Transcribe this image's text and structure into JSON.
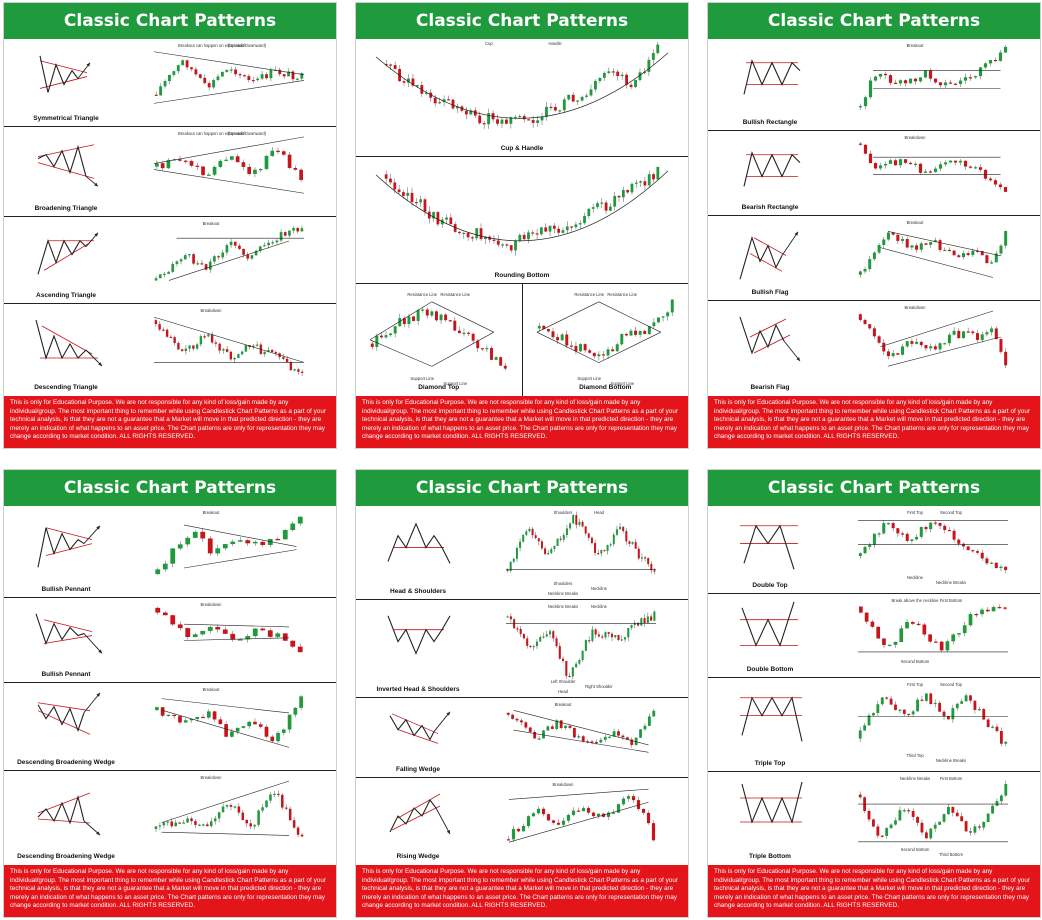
{
  "title": "Classic Chart Patterns",
  "disclaimer": "This is only for Educational Purpose. We are not responsible for any kind of loss/gain made by any individual/group. The most important thing to remember while using Candlestick Chart Patterns as a part of your technical analysis, is that they are not a guarantee that a Market will move in that predicted direction - they are merely an indication of what happens to an asset price. The Chart patterns are only for representation they may change according to market condition. ALL RIGHTS RESERVED.",
  "colors": {
    "header": "#1f9a3d",
    "disclaimer": "#e3151a",
    "bull": "#1f9a3d",
    "bear": "#c8141b"
  },
  "posters": [
    {
      "rows": [
        {
          "kind": "pair",
          "label": "Symmetrical Triangle",
          "shape": "sym",
          "candles": "sym",
          "notes": [
            "Breakout can happen on either side",
            "(Upward/Downward)"
          ]
        },
        {
          "kind": "pair",
          "label": "Broadening Triangle",
          "shape": "broad",
          "candles": "broad",
          "notes": [
            "Breakout can happen on either side",
            "(Upward/Downward)"
          ]
        },
        {
          "kind": "pair",
          "label": "Ascending Triangle",
          "shape": "asc",
          "candles": "asc",
          "notes": [
            "Breakout"
          ]
        },
        {
          "kind": "pair",
          "label": "Descending Triangle",
          "shape": "desc",
          "candles": "desc",
          "notes": [
            "Breakdown"
          ]
        }
      ]
    },
    {
      "rows": [
        {
          "kind": "wide",
          "label": "Cup & Handle",
          "candles": "cup",
          "notes": [
            "Cup",
            "Handle"
          ]
        },
        {
          "kind": "wide",
          "label": "Rounding Bottom",
          "candles": "round",
          "notes": []
        },
        {
          "kind": "split",
          "cells": [
            {
              "label": "Diamond Top",
              "candles": "dtop",
              "notes": [
                "Resistance Line",
                "Resistance Line",
                "Support Line",
                "Support Line"
              ]
            },
            {
              "label": "Diamond Bottom",
              "candles": "dbot",
              "notes": [
                "Resistance Line",
                "Resistance Line",
                "Support Line",
                "Support Line"
              ]
            }
          ]
        }
      ]
    },
    {
      "rows": [
        {
          "kind": "pair",
          "label": "Bullish Rectangle",
          "shape": "rect",
          "candles": "bullrect",
          "notes": [
            "Breakout"
          ]
        },
        {
          "kind": "pair",
          "label": "Bearish Rectangle",
          "shape": "rect",
          "candles": "bearrect",
          "notes": [
            "Breakdown"
          ]
        },
        {
          "kind": "pair",
          "label": "Bullish Flag",
          "shape": "bullflag",
          "candles": "bullflag",
          "notes": [
            "Breakout"
          ]
        },
        {
          "kind": "pair",
          "label": "Bearish Flag",
          "shape": "bearflag",
          "candles": "bearflag",
          "notes": [
            "Breakdown"
          ]
        }
      ]
    },
    {
      "rows": [
        {
          "kind": "pair",
          "label": "Bullish Pennant",
          "shape": "pennant",
          "candles": "bullpen",
          "notes": [
            "Breakout"
          ]
        },
        {
          "kind": "pair",
          "label": "Bullish Pennant",
          "shape": "bearpen",
          "candles": "bearpen",
          "notes": [
            "Breakdown"
          ]
        },
        {
          "kind": "pair",
          "label": "Descending Broadening Wedge",
          "shape": "dbw",
          "candles": "dbw",
          "notes": [
            "Breakout"
          ]
        },
        {
          "kind": "pair",
          "label": "Descending Broadening Wedge",
          "shape": "abw",
          "candles": "abw",
          "notes": [
            "Breakdown"
          ]
        }
      ]
    },
    {
      "rows": [
        {
          "kind": "pair",
          "label": "Head & Shoulders",
          "shape": "hs",
          "candles": "hs",
          "notes": [
            "Shoulders",
            "Head",
            "Shoulders",
            "Neckline",
            "Neckline Breaks"
          ]
        },
        {
          "kind": "pair",
          "label": "Inverted Head & Shoulders",
          "shape": "ihs",
          "candles": "ihs",
          "notes": [
            "Neckline Breaks",
            "Neckline",
            "Left Shoulder",
            "Right Shoulder",
            "Head"
          ]
        },
        {
          "kind": "pair",
          "label": "Falling Wedge",
          "shape": "fwedge",
          "candles": "fwedge",
          "notes": [
            "Breakout"
          ]
        },
        {
          "kind": "pair",
          "label": "Rising Wedge",
          "shape": "rwedge",
          "candles": "rwedge",
          "notes": [
            "Breakdown"
          ]
        }
      ]
    },
    {
      "rows": [
        {
          "kind": "pair",
          "label": "Double Top",
          "shape": "dtop2",
          "candles": "dtop2",
          "notes": [
            "First Top",
            "Second Top",
            "Neckline",
            "Neckline Breaks"
          ]
        },
        {
          "kind": "pair",
          "label": "Double Bottom",
          "shape": "dbot2",
          "candles": "dbot2",
          "notes": [
            "Break above the neckline",
            "First Bottom",
            "Second Bottom"
          ]
        },
        {
          "kind": "pair",
          "label": "Triple Top",
          "shape": "ttop",
          "candles": "ttop",
          "notes": [
            "First Top",
            "Second Top",
            "Third Top",
            "Neckline Breaks"
          ]
        },
        {
          "kind": "pair",
          "label": "Triple Bottom",
          "shape": "tbot",
          "candles": "tbot",
          "notes": [
            "Neckline Breaks",
            "First Bottom",
            "Second Bottom",
            "Third Bottom"
          ]
        }
      ]
    }
  ]
}
